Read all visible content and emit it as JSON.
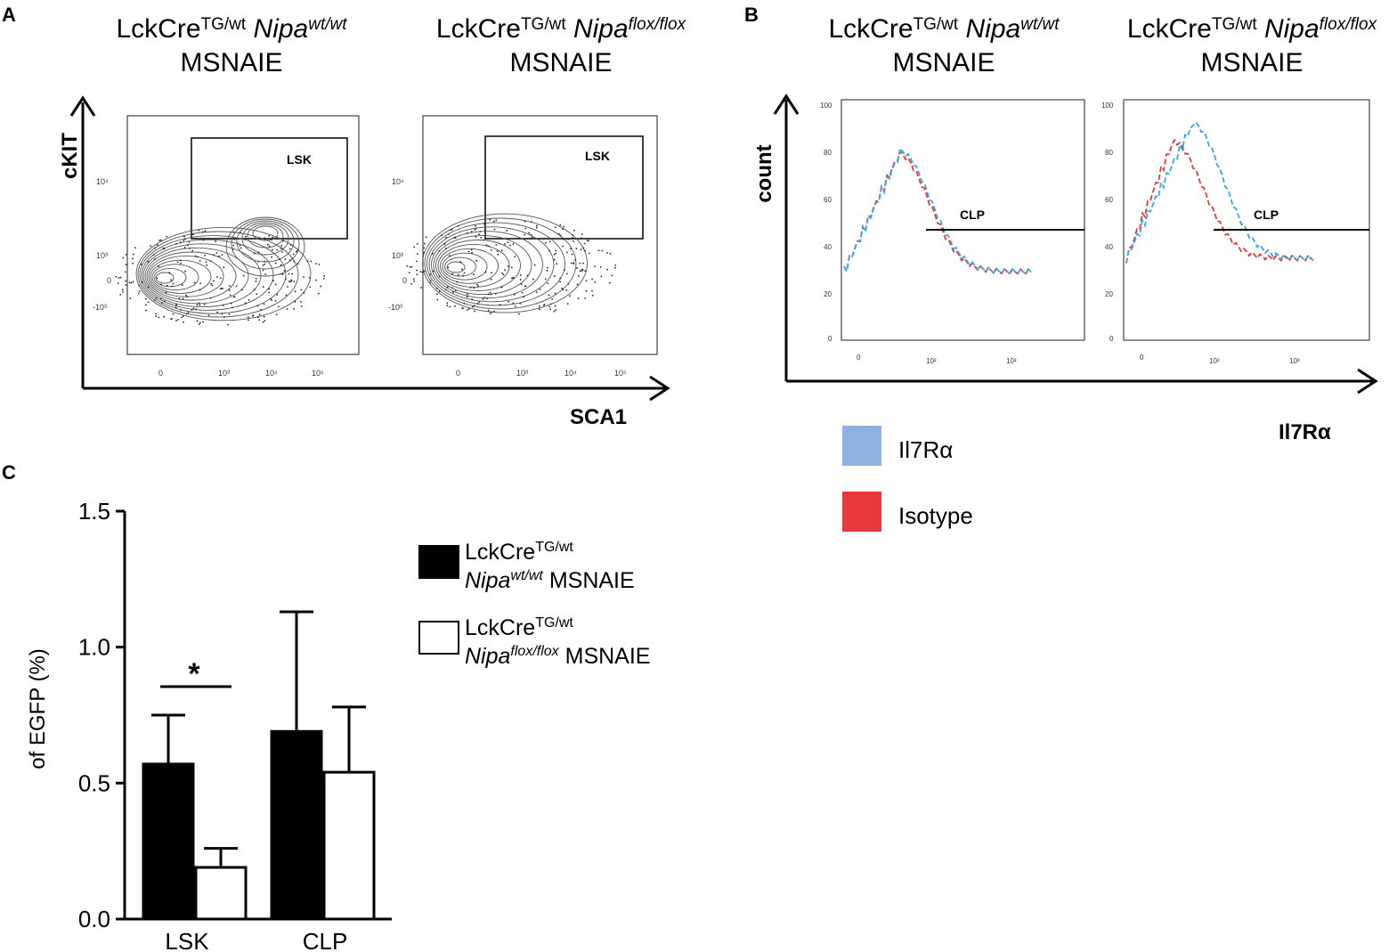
{
  "panels": {
    "a": {
      "letter": "A",
      "titles": [
        {
          "lck": "LckCre",
          "sup": "TG/wt",
          "nipa": "Nipa",
          "nipa_sup": "wt/wt",
          "strain": "MSNAIE"
        },
        {
          "lck": "LckCre",
          "sup": "TG/wt",
          "nipa": "Nipa",
          "nipa_sup": "flox/flox",
          "strain": "MSNAIE"
        }
      ],
      "y_axis": "cKIT",
      "x_axis": "SCA1",
      "gate_label": "LSK",
      "y_ticks": [
        "10⁴",
        "10³",
        "0",
        "-10³"
      ],
      "x_ticks": [
        "0",
        "10³",
        "10⁴",
        "10⁵"
      ]
    },
    "b": {
      "letter": "B",
      "titles": [
        {
          "lck": "LckCre",
          "sup": "TG/wt",
          "nipa": "Nipa",
          "nipa_sup": "wt/wt",
          "strain": "MSNAIE"
        },
        {
          "lck": "LckCre",
          "sup": "TG/wt",
          "nipa": "Nipa",
          "nipa_sup": "flox/flox",
          "strain": "MSNAIE"
        }
      ],
      "y_axis": "count",
      "x_axis": "Il7Rα",
      "gate_label": "CLP",
      "y_ticks": [
        "100",
        "80",
        "60",
        "40",
        "20",
        "0"
      ],
      "x_ticks": [
        "0",
        "10²",
        "10³"
      ],
      "legend": [
        {
          "label": "Il7Rα",
          "color": "#8eb3e0"
        },
        {
          "label": "Isotype",
          "color": "#e8383b"
        }
      ]
    },
    "c": {
      "letter": "C",
      "legend": [
        {
          "lck": "LckCre",
          "sup": "TG/wt",
          "nipa": "Nipa",
          "nipa_sup": "wt/wt",
          "strain": "MSNAIE",
          "fill": "#000000"
        },
        {
          "lck": "LckCre",
          "sup": "TG/wt",
          "nipa": "Nipa",
          "nipa_sup": "flox/flox",
          "strain": "MSNAIE",
          "fill": "#ffffff"
        }
      ],
      "significance": "*"
    }
  },
  "chart_data": {
    "type": "bar",
    "title": "",
    "xlabel": "",
    "ylabel": "of EGFP (%)",
    "categories": [
      "LSK",
      "CLP"
    ],
    "series": [
      {
        "name": "LckCre TG/wt Nipa wt/wt MSNAIE",
        "values": [
          0.57,
          0.69
        ],
        "errors": [
          0.18,
          0.44
        ]
      },
      {
        "name": "LckCre TG/wt Nipa flox/flox MSNAIE",
        "values": [
          0.19,
          0.54
        ],
        "errors": [
          0.07,
          0.24
        ]
      }
    ],
    "ylim": [
      0,
      1.5
    ],
    "yticks": [
      0.0,
      0.5,
      1.0,
      1.5
    ],
    "ytick_labels": [
      "0.0",
      "0.5",
      "1.0",
      "1.5"
    ]
  }
}
